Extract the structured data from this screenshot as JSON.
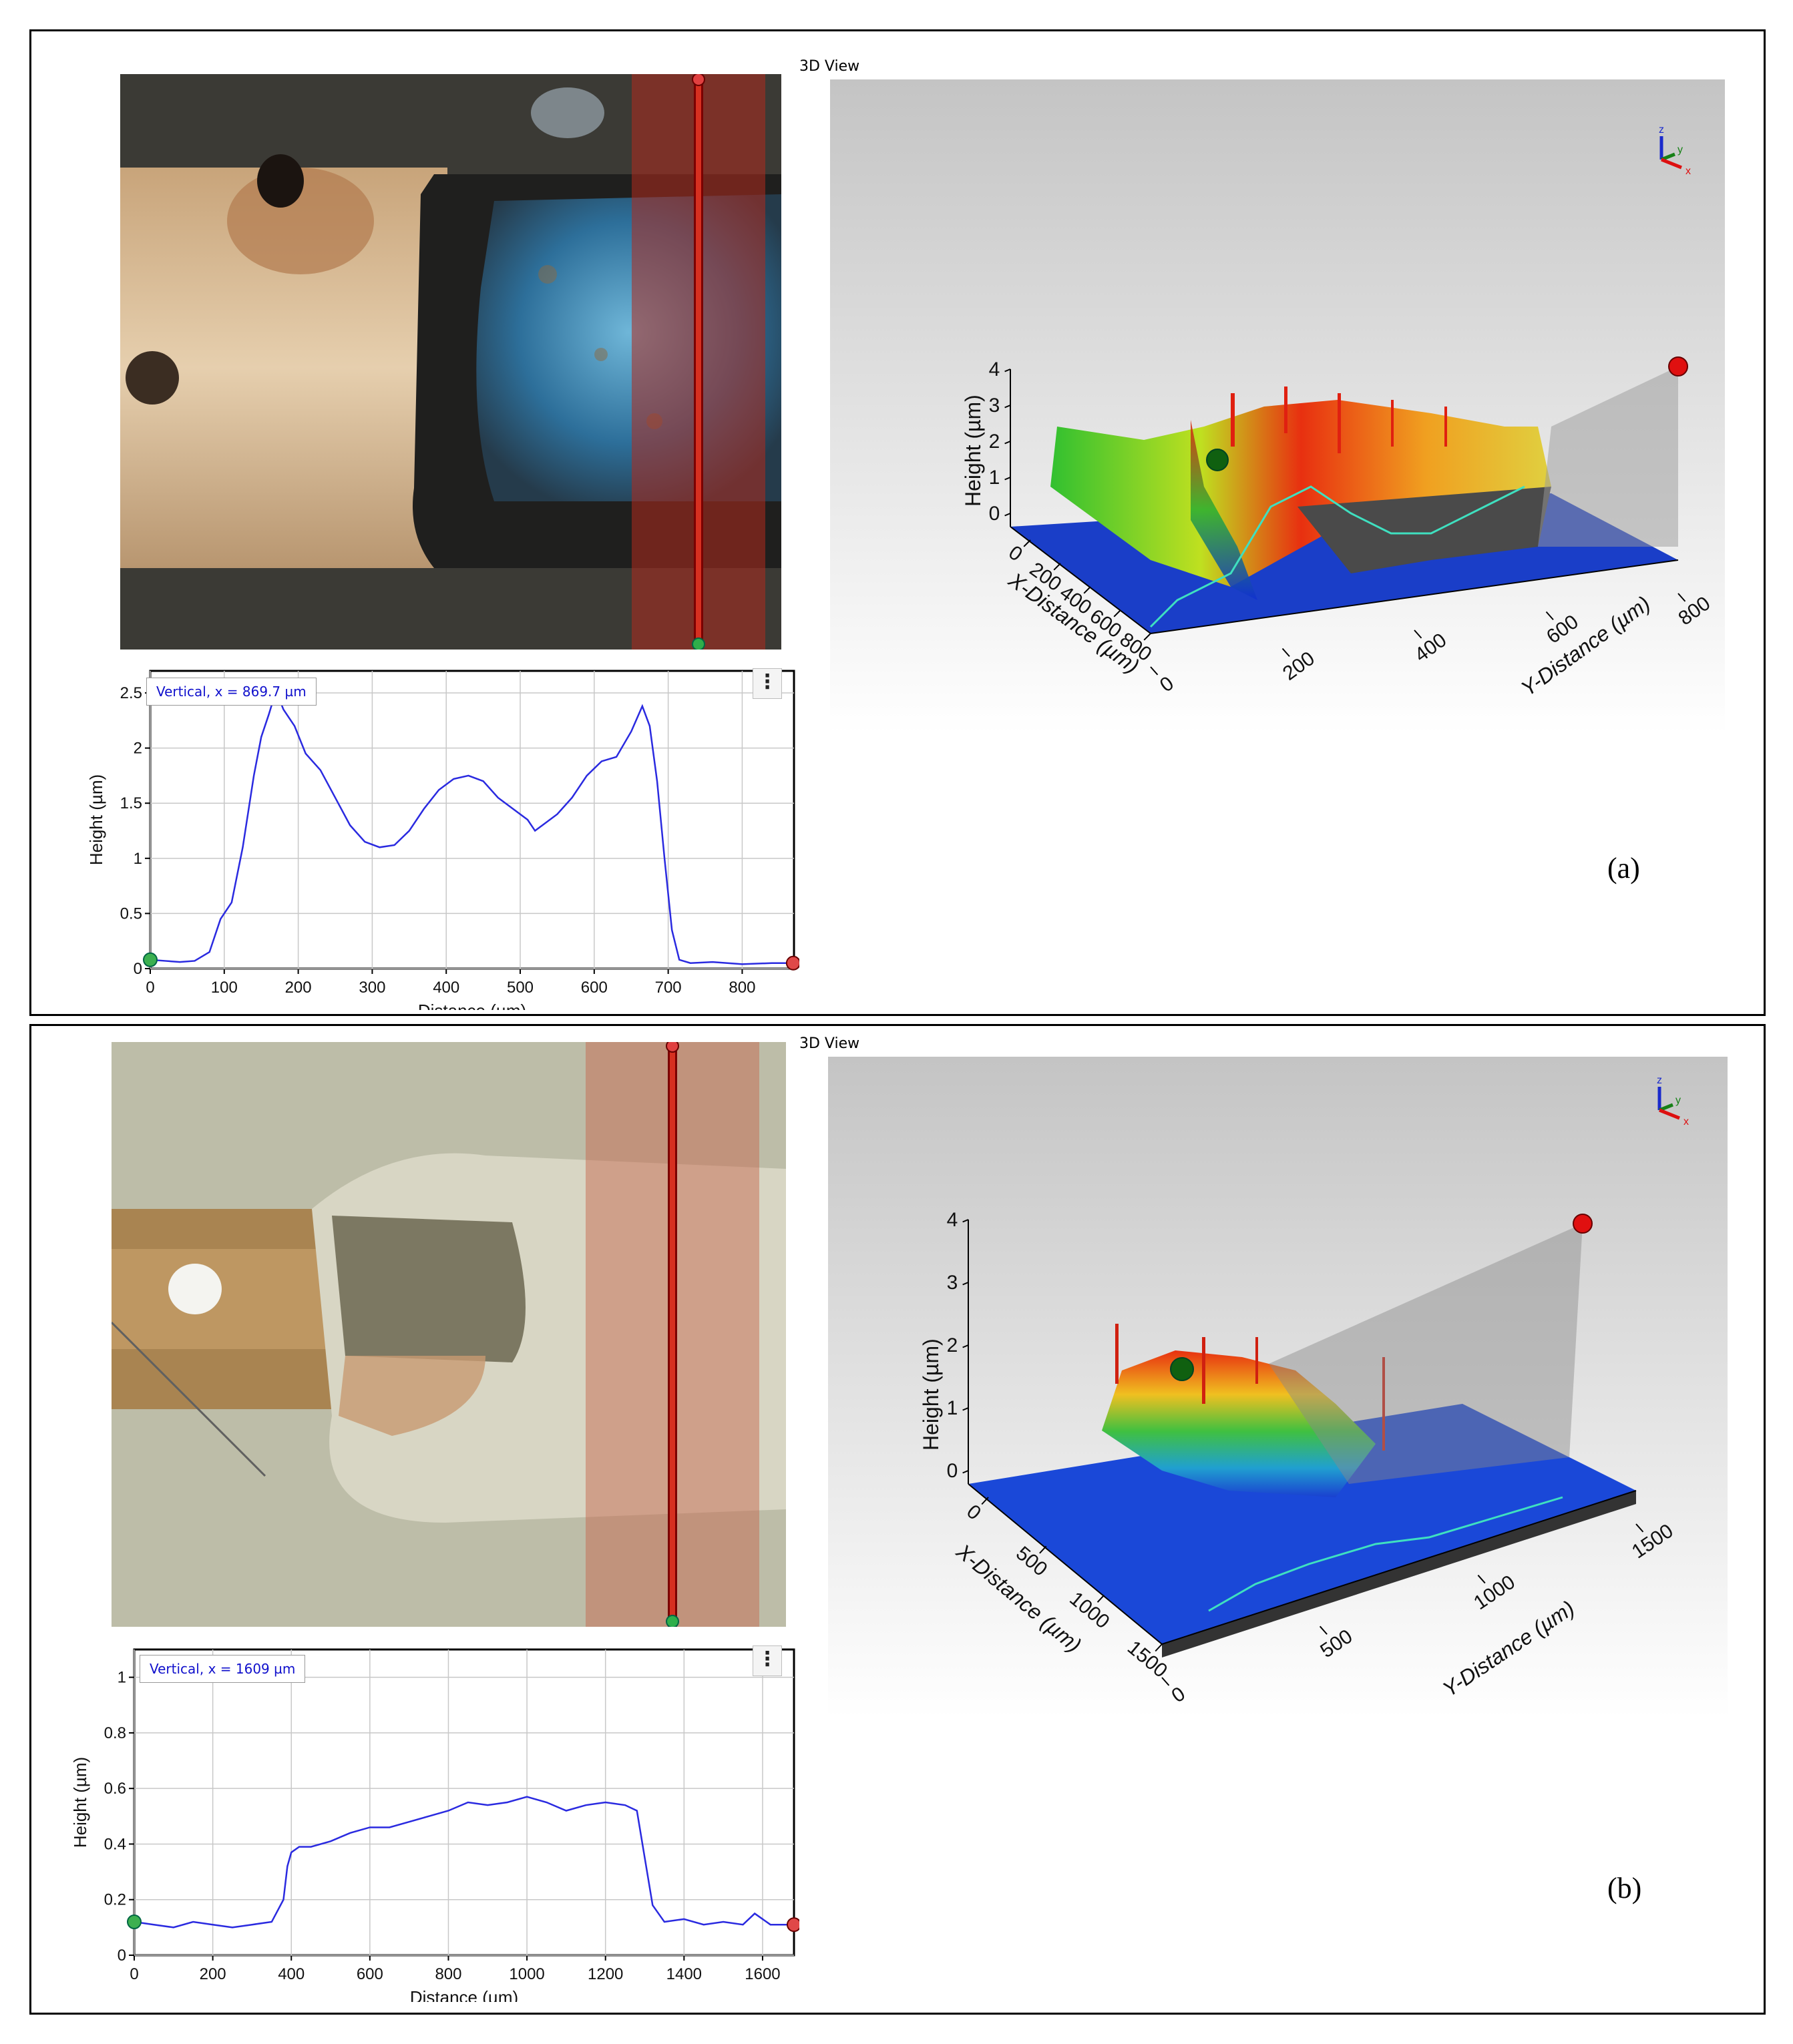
{
  "panels": [
    {
      "id": "a",
      "label": "(a)",
      "view_title": "3D View",
      "profile_tag": "Vertical, x = 869.7 µm",
      "chart_data": {
        "type": "line",
        "xlabel": "Distance (µm)",
        "ylabel": "Height (µm)",
        "xlim": [
          0,
          870
        ],
        "ylim": [
          0,
          2.7
        ],
        "xticks": [
          0,
          100,
          200,
          300,
          400,
          500,
          600,
          700,
          800
        ],
        "yticks": [
          0,
          0.5,
          1,
          1.5,
          2,
          2.5
        ],
        "ytick_labels": [
          "0",
          "0.5",
          "1",
          "1.5",
          "2",
          "2.5"
        ],
        "grid": true,
        "series": [
          {
            "x": [
              0,
              20,
              40,
              60,
              80,
              95,
              110,
              125,
              140,
              150,
              160,
              170,
              180,
              195,
              210,
              230,
              250,
              270,
              290,
              310,
              330,
              350,
              370,
              390,
              410,
              430,
              450,
              470,
              490,
              510,
              520,
              530,
              550,
              570,
              590,
              610,
              630,
              650,
              665,
              675,
              685,
              695,
              705,
              715,
              730,
              760,
              800,
              840,
              869
            ],
            "y": [
              0.08,
              0.07,
              0.06,
              0.07,
              0.15,
              0.45,
              0.6,
              1.1,
              1.75,
              2.1,
              2.3,
              2.52,
              2.35,
              2.2,
              1.95,
              1.8,
              1.55,
              1.3,
              1.15,
              1.1,
              1.12,
              1.25,
              1.45,
              1.62,
              1.72,
              1.75,
              1.7,
              1.55,
              1.45,
              1.35,
              1.25,
              1.3,
              1.4,
              1.55,
              1.75,
              1.88,
              1.92,
              2.15,
              2.38,
              2.2,
              1.7,
              1.0,
              0.35,
              0.08,
              0.05,
              0.06,
              0.04,
              0.05,
              0.05
            ]
          }
        ]
      },
      "view3d": {
        "z_label": "Height (µm)",
        "x_label": "X-Distance (µm)",
        "y_label": "Y-Distance (µm)",
        "z_ticks": [
          "0",
          "1",
          "2",
          "3",
          "4"
        ],
        "x_ticks": [
          "0",
          "200",
          "400",
          "600",
          "800"
        ],
        "y_ticks": [
          "0",
          "200",
          "400",
          "600",
          "800"
        ],
        "axis_letters": [
          "z",
          "y",
          "x"
        ]
      }
    },
    {
      "id": "b",
      "label": "(b)",
      "view_title": "3D View",
      "profile_tag": "Vertical, x = 1609 µm",
      "chart_data": {
        "type": "line",
        "xlabel": "Distance (µm)",
        "ylabel": "Height (µm)",
        "xlim": [
          0,
          1680
        ],
        "ylim": [
          0,
          1.1
        ],
        "xticks": [
          0,
          200,
          400,
          600,
          800,
          1000,
          1200,
          1400,
          1600
        ],
        "yticks": [
          0,
          0.2,
          0.4,
          0.6,
          0.8,
          1
        ],
        "ytick_labels": [
          "0",
          "0.2",
          "0.4",
          "0.6",
          "0.8",
          "1"
        ],
        "grid": true,
        "series": [
          {
            "x": [
              0,
              50,
              100,
              150,
              200,
              250,
              300,
              350,
              380,
              390,
              400,
              420,
              450,
              500,
              550,
              600,
              650,
              700,
              750,
              800,
              850,
              900,
              950,
              1000,
              1050,
              1100,
              1150,
              1200,
              1250,
              1280,
              1300,
              1320,
              1350,
              1400,
              1450,
              1500,
              1550,
              1580,
              1620,
              1680
            ],
            "y": [
              0.12,
              0.11,
              0.1,
              0.12,
              0.11,
              0.1,
              0.11,
              0.12,
              0.2,
              0.32,
              0.37,
              0.39,
              0.39,
              0.41,
              0.44,
              0.46,
              0.46,
              0.48,
              0.5,
              0.52,
              0.55,
              0.54,
              0.55,
              0.57,
              0.55,
              0.52,
              0.54,
              0.55,
              0.54,
              0.52,
              0.35,
              0.18,
              0.12,
              0.13,
              0.11,
              0.12,
              0.11,
              0.15,
              0.11,
              0.11
            ]
          }
        ]
      },
      "view3d": {
        "z_label": "Height (µm)",
        "x_label": "X-Distance (µm)",
        "y_label": "Y-Distance (µm)",
        "z_ticks": [
          "0",
          "1",
          "2",
          "3",
          "4"
        ],
        "x_ticks": [
          "0",
          "500",
          "1000",
          "1500"
        ],
        "y_ticks": [
          "0",
          "500",
          "1000",
          "1500"
        ],
        "axis_letters": [
          "z",
          "y",
          "x"
        ]
      }
    }
  ]
}
